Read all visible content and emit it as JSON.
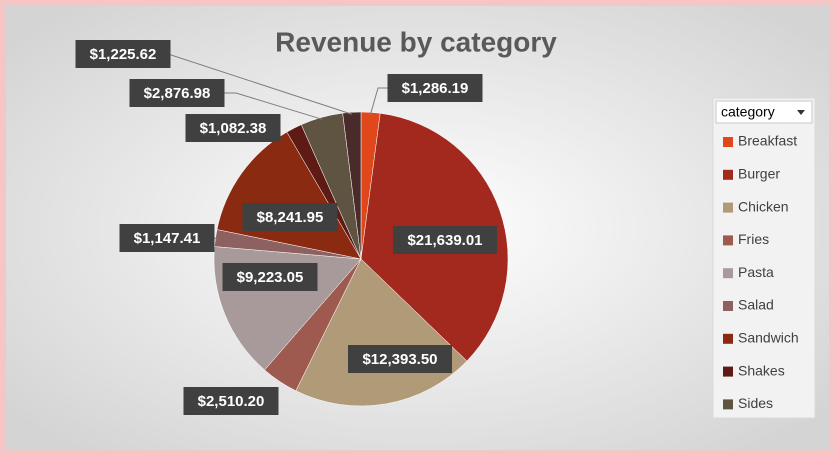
{
  "chart_data": {
    "type": "pie",
    "title": "Revenue by category",
    "legend_title": "category",
    "categories": [
      "Breakfast",
      "Burger",
      "Chicken",
      "Fries",
      "Pasta",
      "Salad",
      "Sandwich",
      "Shakes",
      "Sides",
      null
    ],
    "values": [
      1286.19,
      21639.01,
      12393.5,
      2510.2,
      9223.05,
      1147.41,
      8241.95,
      1082.38,
      2876.98,
      1225.62
    ],
    "value_labels": [
      "$1,286.19",
      "$21,639.01",
      "$12,393.50",
      "$2,510.20",
      "$9,223.05",
      "$1,147.41",
      "$8,241.95",
      "$1,082.38",
      "$2,876.98",
      "$1,225.62"
    ],
    "colors": [
      "#e0481b",
      "#a3291f",
      "#b09a78",
      "#9e5a4e",
      "#a89a9a",
      "#8c6160",
      "#8a2a10",
      "#5e1a14",
      "#5f5342",
      "#4a2a2a"
    ],
    "legend": "right"
  }
}
